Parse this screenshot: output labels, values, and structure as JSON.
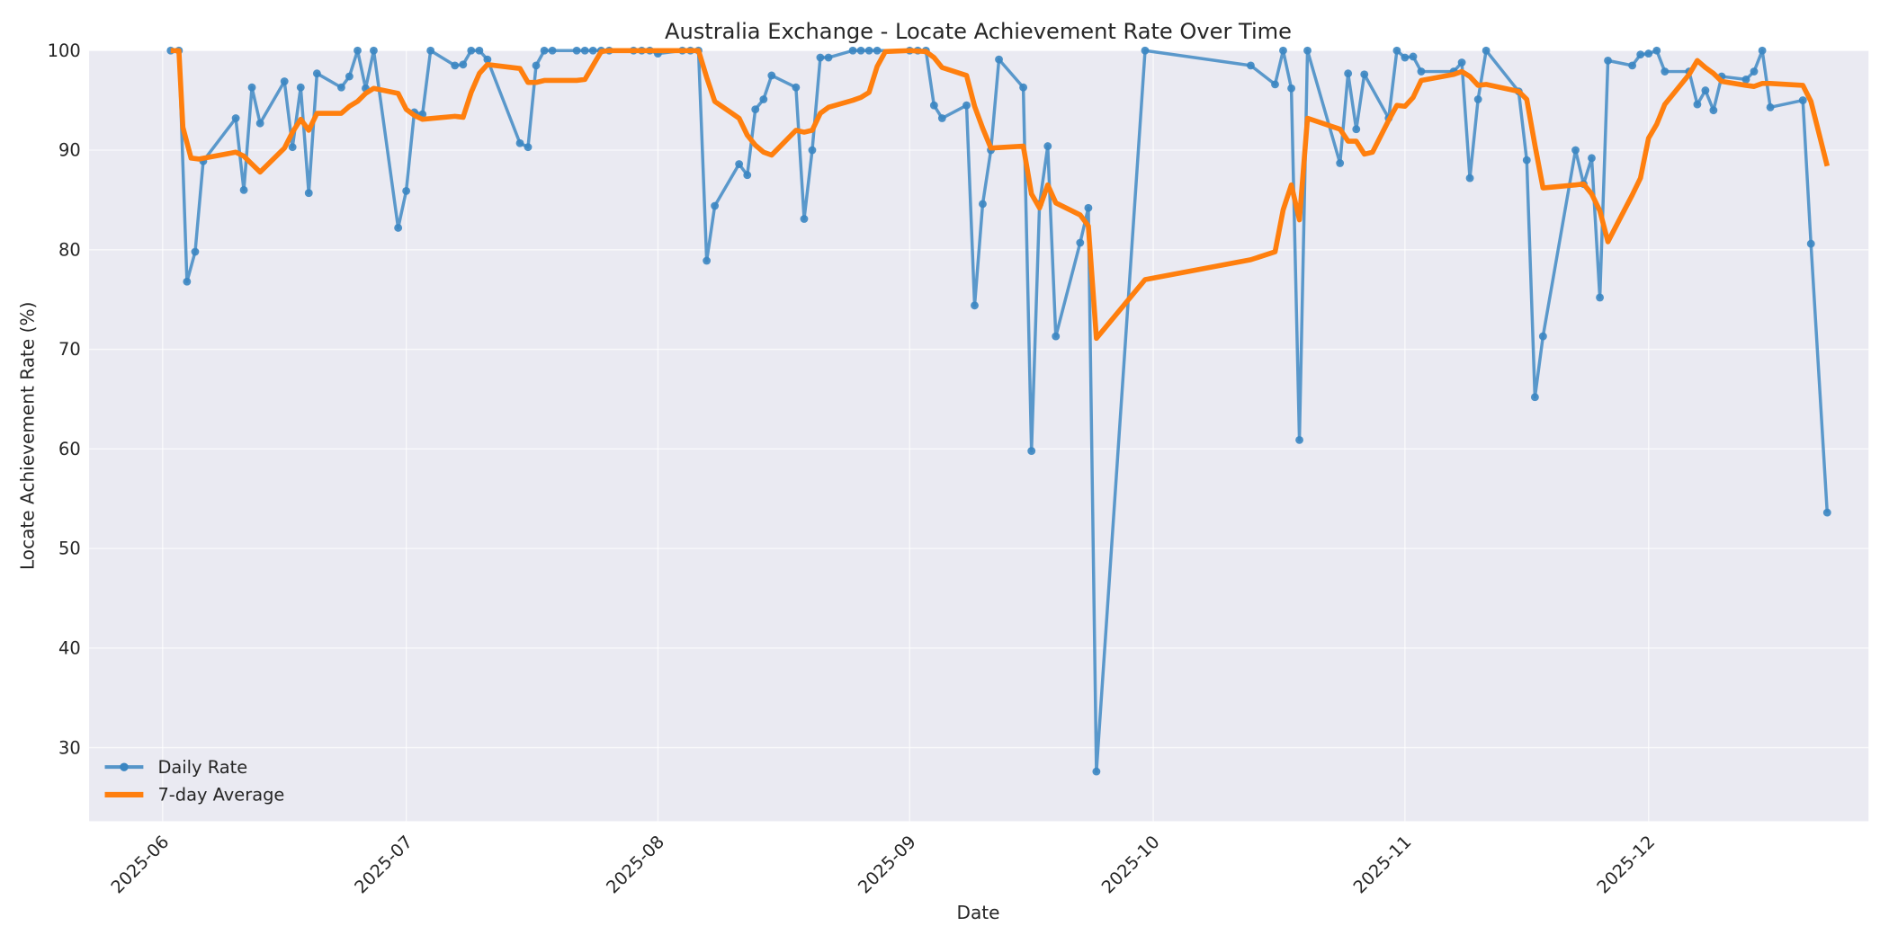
{
  "chart_data": {
    "type": "line",
    "title": "Australia Exchange - Locate Achievement Rate Over Time",
    "xlabel": "Date",
    "ylabel": "Locate Achievement Rate (%)",
    "ylim": [
      22.5,
      100
    ],
    "yticks": [
      30,
      40,
      50,
      60,
      70,
      80,
      90,
      100
    ],
    "xticks": [
      "2025-06",
      "2025-07",
      "2025-08",
      "2025-09",
      "2025-10",
      "2025-11",
      "2025-12"
    ],
    "xtick_day_offsets": [
      0,
      30,
      61,
      92,
      122,
      153,
      183
    ],
    "x_start_date": "2025-06-01",
    "grid": true,
    "legend_position": "lower left",
    "colors": {
      "daily": "#3b86c2",
      "avg": "#ff7f0e",
      "plot_bg": "#eaeaf2",
      "grid": "#ffffff"
    },
    "series": [
      {
        "name": "Daily Rate",
        "marker": "circle",
        "points": [
          [
            1,
            100
          ],
          [
            2,
            100
          ],
          [
            3,
            76.8
          ],
          [
            4,
            79.8
          ],
          [
            5,
            88.9
          ],
          [
            9,
            93.2
          ],
          [
            10,
            86
          ],
          [
            11,
            96.3
          ],
          [
            12,
            92.7
          ],
          [
            15,
            96.9
          ],
          [
            16,
            90.3
          ],
          [
            17,
            96.3
          ],
          [
            18,
            85.7
          ],
          [
            19,
            97.7
          ],
          [
            22,
            96.3
          ],
          [
            23,
            97.4
          ],
          [
            24,
            100
          ],
          [
            25,
            96.2
          ],
          [
            26,
            100
          ],
          [
            29,
            82.2
          ],
          [
            30,
            85.9
          ],
          [
            31,
            93.8
          ],
          [
            32,
            93.6
          ],
          [
            33,
            100
          ],
          [
            36,
            98.5
          ],
          [
            37,
            98.6
          ],
          [
            38,
            100
          ],
          [
            39,
            100
          ],
          [
            40,
            99.1
          ],
          [
            44,
            90.7
          ],
          [
            45,
            90.3
          ],
          [
            46,
            98.5
          ],
          [
            47,
            100
          ],
          [
            48,
            100
          ],
          [
            51,
            100
          ],
          [
            52,
            100
          ],
          [
            53,
            100
          ],
          [
            54,
            100
          ],
          [
            55,
            100
          ],
          [
            58,
            100
          ],
          [
            59,
            100
          ],
          [
            60,
            100
          ],
          [
            61,
            99.7
          ],
          [
            64,
            100
          ],
          [
            65,
            100
          ],
          [
            66,
            100
          ],
          [
            67,
            78.9
          ],
          [
            68,
            84.4
          ],
          [
            71,
            88.6
          ],
          [
            72,
            87.5
          ],
          [
            73,
            94.1
          ],
          [
            74,
            95.1
          ],
          [
            75,
            97.5
          ],
          [
            78,
            96.3
          ],
          [
            79,
            83.1
          ],
          [
            80,
            90
          ],
          [
            81,
            99.3
          ],
          [
            82,
            99.3
          ],
          [
            85,
            100
          ],
          [
            86,
            100
          ],
          [
            87,
            100
          ],
          [
            88,
            100
          ],
          [
            92,
            100
          ],
          [
            93,
            100
          ],
          [
            94,
            100
          ],
          [
            95,
            94.5
          ],
          [
            96,
            93.2
          ],
          [
            99,
            94.5
          ],
          [
            100,
            74.4
          ],
          [
            101,
            84.6
          ],
          [
            102,
            90
          ],
          [
            103,
            99.1
          ],
          [
            106,
            96.3
          ],
          [
            107,
            59.8
          ],
          [
            108,
            84.6
          ],
          [
            109,
            90.4
          ],
          [
            110,
            71.3
          ],
          [
            113,
            80.7
          ],
          [
            114,
            84.2
          ],
          [
            115,
            27.6
          ],
          [
            121,
            100
          ],
          [
            134,
            98.5
          ],
          [
            137,
            96.6
          ],
          [
            138,
            100
          ],
          [
            139,
            96.2
          ],
          [
            140,
            60.9
          ],
          [
            141,
            100
          ],
          [
            145,
            88.7
          ],
          [
            146,
            97.7
          ],
          [
            147,
            92.1
          ],
          [
            148,
            97.6
          ],
          [
            151,
            93.2
          ],
          [
            152,
            100
          ],
          [
            153,
            99.3
          ],
          [
            154,
            99.4
          ],
          [
            155,
            97.9
          ],
          [
            159,
            97.9
          ],
          [
            160,
            98.8
          ],
          [
            161,
            87.2
          ],
          [
            162,
            95.1
          ],
          [
            163,
            100
          ],
          [
            167,
            95.9
          ],
          [
            168,
            89
          ],
          [
            169,
            65.2
          ],
          [
            170,
            71.3
          ],
          [
            174,
            90
          ],
          [
            175,
            86.6
          ],
          [
            176,
            89.2
          ],
          [
            177,
            75.2
          ],
          [
            178,
            99
          ],
          [
            181,
            98.5
          ],
          [
            182,
            99.6
          ],
          [
            183,
            99.7
          ],
          [
            184,
            100
          ],
          [
            185,
            97.9
          ],
          [
            188,
            97.9
          ],
          [
            189,
            94.6
          ],
          [
            190,
            96
          ],
          [
            191,
            94
          ],
          [
            192,
            97.4
          ],
          [
            195,
            97.1
          ],
          [
            196,
            97.9
          ],
          [
            197,
            100
          ],
          [
            198,
            94.3
          ],
          [
            202,
            95
          ],
          [
            203,
            80.6
          ],
          [
            205,
            53.6
          ]
        ]
      },
      {
        "name": "7-day Average",
        "marker": "none",
        "points": [
          [
            1,
            100
          ],
          [
            2,
            100
          ],
          [
            2.5,
            92.3
          ],
          [
            3.5,
            89.2
          ],
          [
            4.5,
            89.1
          ],
          [
            9,
            89.8
          ],
          [
            10,
            89.4
          ],
          [
            11,
            88.6
          ],
          [
            12,
            87.8
          ],
          [
            15,
            90.2
          ],
          [
            16,
            91.8
          ],
          [
            17,
            93.1
          ],
          [
            18,
            92
          ],
          [
            19,
            93.7
          ],
          [
            22,
            93.7
          ],
          [
            23,
            94.4
          ],
          [
            24,
            94.9
          ],
          [
            25,
            95.7
          ],
          [
            26,
            96.2
          ],
          [
            29,
            95.7
          ],
          [
            30,
            94.1
          ],
          [
            31,
            93.5
          ],
          [
            32,
            93.1
          ],
          [
            36,
            93.4
          ],
          [
            37,
            93.3
          ],
          [
            38,
            95.8
          ],
          [
            39,
            97.7
          ],
          [
            40,
            98.6
          ],
          [
            44,
            98.2
          ],
          [
            45,
            96.8
          ],
          [
            46,
            96.8
          ],
          [
            47,
            97
          ],
          [
            48,
            97
          ],
          [
            51,
            97
          ],
          [
            52,
            97.1
          ],
          [
            53,
            98.5
          ],
          [
            54,
            99.9
          ],
          [
            55,
            100
          ],
          [
            58,
            100
          ],
          [
            61,
            100
          ],
          [
            66,
            100
          ],
          [
            67,
            97.3
          ],
          [
            68,
            94.9
          ],
          [
            71,
            93.2
          ],
          [
            72,
            91.5
          ],
          [
            73,
            90.5
          ],
          [
            74,
            89.8
          ],
          [
            75,
            89.5
          ],
          [
            78,
            92
          ],
          [
            79,
            91.8
          ],
          [
            80,
            92
          ],
          [
            81,
            93.7
          ],
          [
            82,
            94.3
          ],
          [
            85,
            95
          ],
          [
            86,
            95.3
          ],
          [
            87,
            95.8
          ],
          [
            88,
            98.4
          ],
          [
            89,
            99.9
          ],
          [
            92,
            100
          ],
          [
            94,
            99.9
          ],
          [
            95,
            99.3
          ],
          [
            96,
            98.3
          ],
          [
            99,
            97.5
          ],
          [
            100,
            94.4
          ],
          [
            101,
            92.2
          ],
          [
            102,
            90.2
          ],
          [
            106,
            90.4
          ],
          [
            107,
            85.6
          ],
          [
            108,
            84.2
          ],
          [
            109,
            86.5
          ],
          [
            110,
            84.7
          ],
          [
            113,
            83.5
          ],
          [
            114,
            82.4
          ],
          [
            115,
            71.1
          ],
          [
            121,
            77
          ],
          [
            134,
            79
          ],
          [
            137,
            79.8
          ],
          [
            138,
            84
          ],
          [
            139,
            86.5
          ],
          [
            140,
            83
          ],
          [
            141,
            93.2
          ],
          [
            145,
            92.1
          ],
          [
            146,
            90.9
          ],
          [
            147,
            90.9
          ],
          [
            148,
            89.6
          ],
          [
            149,
            89.8
          ],
          [
            151,
            93
          ],
          [
            152,
            94.5
          ],
          [
            153,
            94.4
          ],
          [
            154,
            95.3
          ],
          [
            155,
            97
          ],
          [
            159,
            97.6
          ],
          [
            160,
            97.9
          ],
          [
            161,
            97.4
          ],
          [
            162,
            96.5
          ],
          [
            163,
            96.6
          ],
          [
            167,
            95.9
          ],
          [
            168,
            95.1
          ],
          [
            169,
            90.5
          ],
          [
            170,
            86.2
          ],
          [
            174,
            86.5
          ],
          [
            175,
            86.6
          ],
          [
            176,
            85.6
          ],
          [
            177,
            83.9
          ],
          [
            178,
            80.8
          ],
          [
            181,
            85.5
          ],
          [
            182,
            87.2
          ],
          [
            183,
            91.2
          ],
          [
            184,
            92.6
          ],
          [
            185,
            94.6
          ],
          [
            188,
            97.6
          ],
          [
            189,
            99
          ],
          [
            190,
            98.3
          ],
          [
            191,
            97.7
          ],
          [
            192,
            96.9
          ],
          [
            195,
            96.5
          ],
          [
            196,
            96.4
          ],
          [
            197,
            96.7
          ],
          [
            198,
            96.7
          ],
          [
            202,
            96.5
          ],
          [
            203,
            94.9
          ],
          [
            205,
            88.4
          ]
        ]
      }
    ]
  },
  "legend": {
    "items": [
      {
        "label": "Daily Rate"
      },
      {
        "label": "7-day Average"
      }
    ]
  }
}
